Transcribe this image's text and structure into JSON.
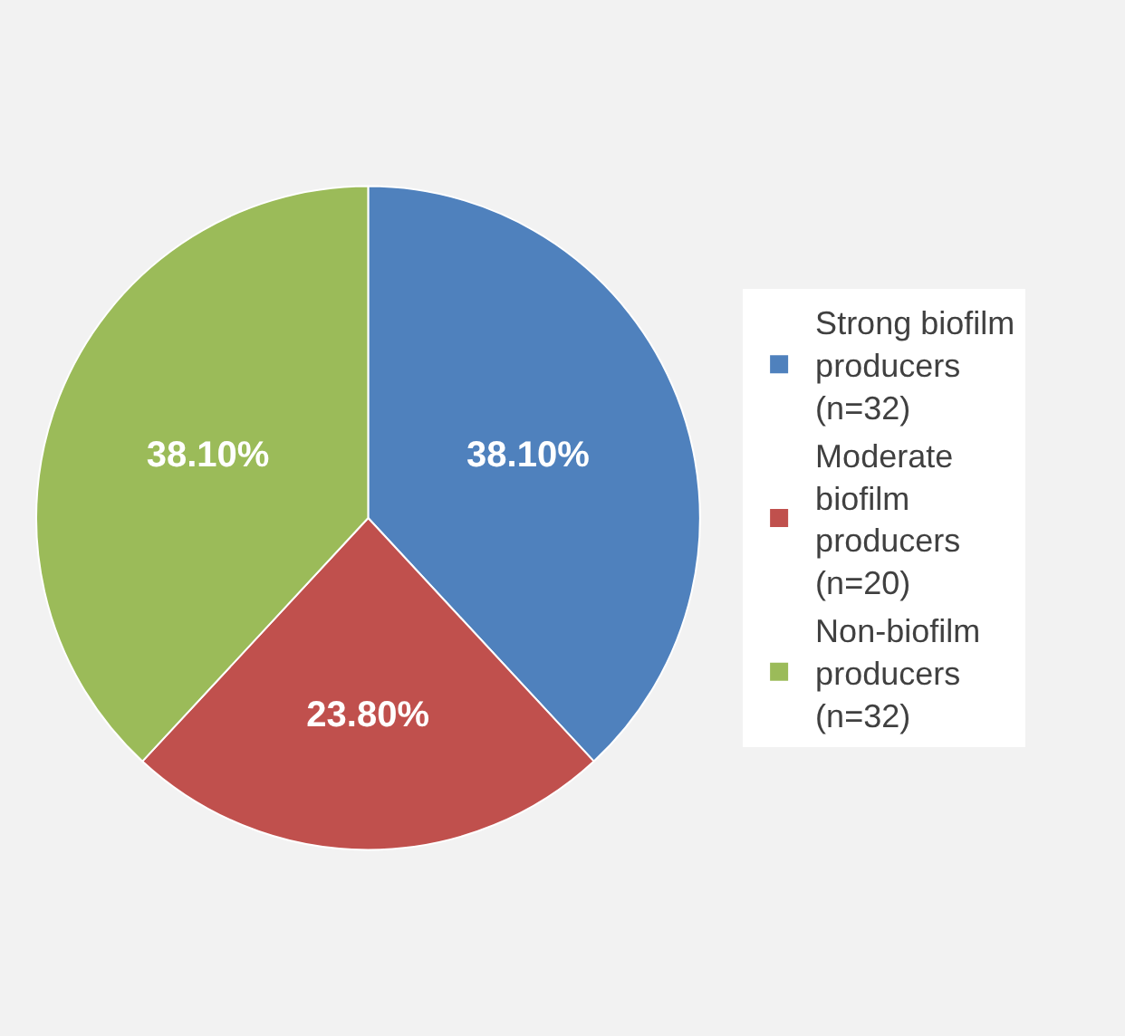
{
  "chart_data": {
    "type": "pie",
    "categories": [
      "Strong biofilm producers (n=32)",
      "Moderate biofilm producers (n=20)",
      "Non-biofilm producers (n=32)"
    ],
    "values": [
      38.1,
      23.8,
      38.1
    ],
    "colors": [
      "#4f81bd",
      "#c0504d",
      "#9bbb59"
    ],
    "value_labels": [
      "38.10%",
      "23.80%",
      "38.10%"
    ],
    "legend": "right"
  }
}
